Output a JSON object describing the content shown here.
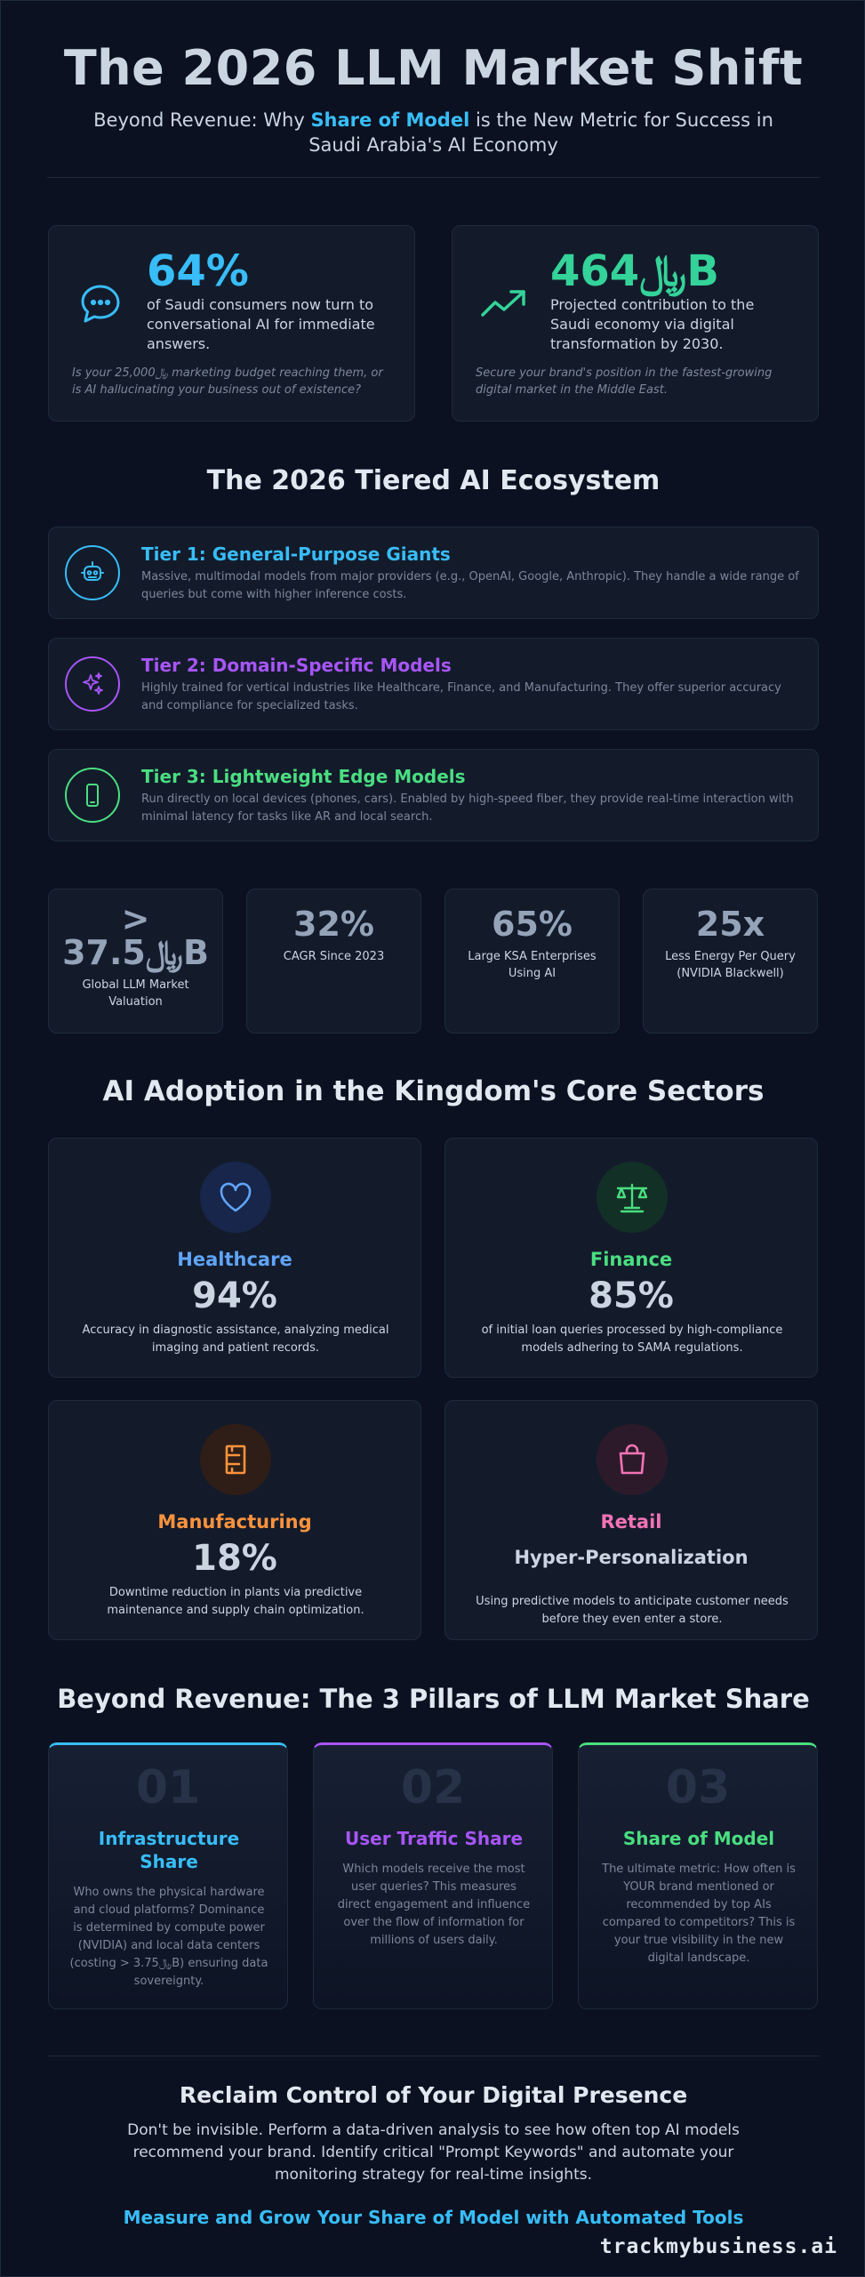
{
  "header": {
    "title": "The 2026 LLM Market Shift",
    "subtitle_pre": "Beyond Revenue: Why ",
    "subtitle_highlight": "Share of Model",
    "subtitle_post": " is the New Metric for Success in Saudi Arabia's AI Economy"
  },
  "hero": [
    {
      "value": "64%",
      "description": "of Saudi consumers now turn to conversational AI for immediate answers.",
      "note": "Is your 25,000﷼ marketing budget reaching them, or is AI hallucinating your business out of existence?",
      "icon": "chat-bubble-icon",
      "color": "#38bdf8"
    },
    {
      "value": "464﷼B",
      "description": "Projected contribution to the Saudi economy via digital transformation by 2030.",
      "note": "Secure your brand's position in the fastest-growing digital market in the Middle East.",
      "icon": "trend-up-icon",
      "color": "#34d399"
    }
  ],
  "tiers_title": "The 2026 Tiered AI Ecosystem",
  "tiers": [
    {
      "name": "Tier 1: General-Purpose Giants",
      "description": "Massive, multimodal models from major providers (e.g., OpenAI, Google, Anthropic). They handle a wide range of queries but come with higher inference costs.",
      "icon": "robot-icon",
      "color": "#38bdf8"
    },
    {
      "name": "Tier 2: Domain-Specific Models",
      "description": "Highly trained for vertical industries like Healthcare, Finance, and Manufacturing. They offer superior accuracy and compliance for specialized tasks.",
      "icon": "sparkles-icon",
      "color": "#a855f7"
    },
    {
      "name": "Tier 3: Lightweight Edge Models",
      "description": "Run directly on local devices (phones, cars). Enabled by high-speed fiber, they provide real-time interaction with minimal latency for tasks like AR and local search.",
      "icon": "smartphone-icon",
      "color": "#4ade80"
    }
  ],
  "stats": [
    {
      "value_line1": ">",
      "value_line2": "37.5﷼B",
      "label": "Global LLM Market Valuation"
    },
    {
      "value": "32%",
      "label": "CAGR Since 2023"
    },
    {
      "value": "65%",
      "label": "Large KSA Enterprises Using AI"
    },
    {
      "value": "25x",
      "label": "Less Energy Per Query (NVIDIA Blackwell)"
    }
  ],
  "sectors_title": "AI Adoption in the Kingdom's Core Sectors",
  "sectors": [
    {
      "name": "Healthcare",
      "value": "94%",
      "description": "Accuracy in diagnostic assistance, analyzing medical imaging and patient records.",
      "icon": "heart-icon",
      "color": "#60a5fa"
    },
    {
      "name": "Finance",
      "value": "85%",
      "description": "of initial loan queries processed by high-compliance models adhering to SAMA regulations.",
      "icon": "bank-scale-icon",
      "color": "#4ade80"
    },
    {
      "name": "Manufacturing",
      "value": "18%",
      "description": "Downtime reduction in plants via predictive maintenance and supply chain optimization.",
      "icon": "factory-icon",
      "color": "#fb923c"
    },
    {
      "name": "Retail",
      "subtitle": "Hyper-Personalization",
      "description": "Using predictive models to anticipate customer needs before they even enter a store.",
      "icon": "shopping-bag-icon",
      "color": "#f472b6"
    }
  ],
  "pillars_title": "Beyond Revenue: The 3 Pillars of LLM Market Share",
  "pillars": [
    {
      "number": "01",
      "name": "Infrastructure Share",
      "description": "Who owns the physical hardware and cloud platforms? Dominance is determined by compute power (NVIDIA) and local data centers (costing > 3.75﷼B) ensuring data sovereignty.",
      "color": "#38bdf8"
    },
    {
      "number": "02",
      "name": "User Traffic Share",
      "description": "Which models receive the most user queries? This measures direct engagement and influence over the flow of information for millions of users daily.",
      "color": "#a855f7"
    },
    {
      "number": "03",
      "name": "Share of Model",
      "description": "The ultimate metric: How often is YOUR brand mentioned or recommended by top AIs compared to competitors? This is your true visibility in the new digital landscape.",
      "color": "#4ade80"
    }
  ],
  "cta": {
    "title": "Reclaim Control of Your Digital Presence",
    "body": "Don't be invisible. Perform a data-driven analysis to see how often top AI models recommend your brand. Identify critical \"Prompt Keywords\" and automate your monitoring strategy for real-time insights.",
    "link": "Measure and Grow Your Share of Model with Automated Tools"
  },
  "brand": "trackmybusiness.ai"
}
